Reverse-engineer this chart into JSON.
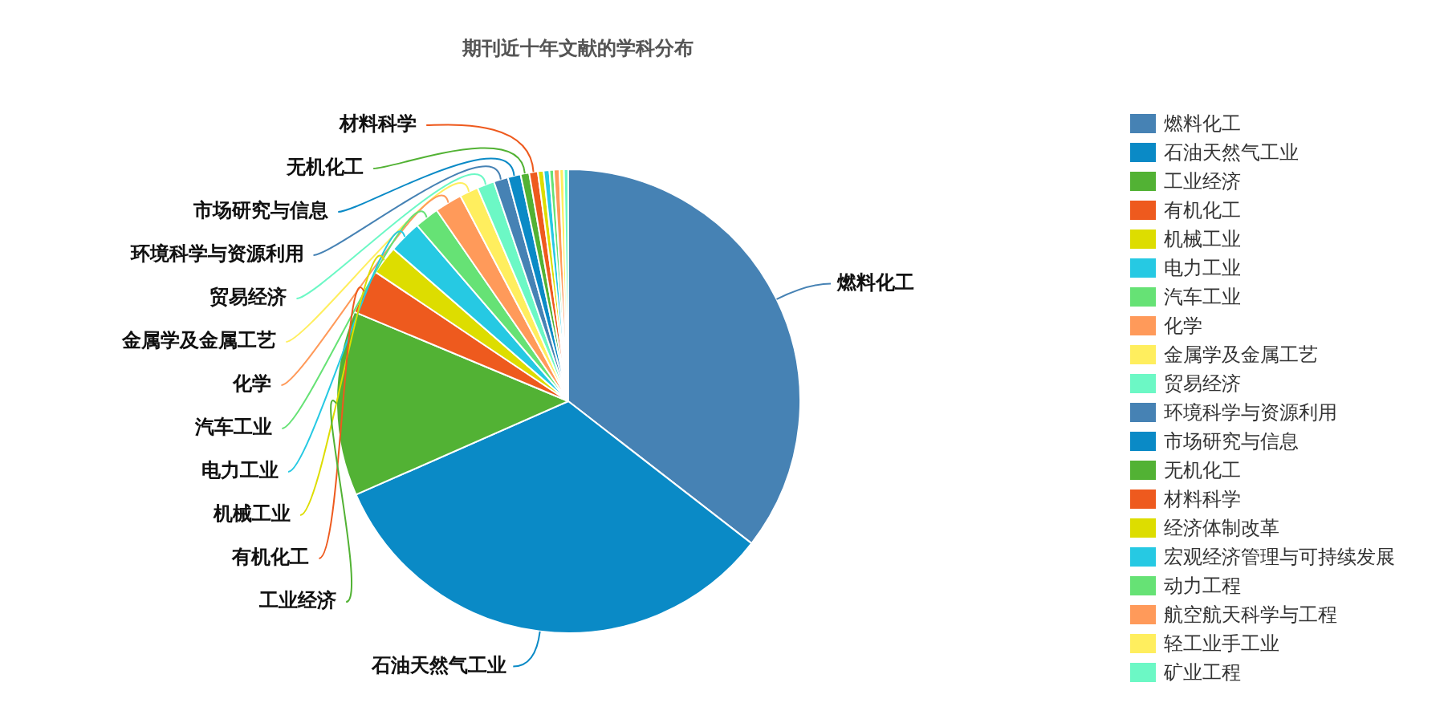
{
  "chart_data": {
    "type": "pie",
    "title": "期刊近十年文献的学科分布",
    "categories": [
      "燃料化工",
      "石油天然气工业",
      "工业经济",
      "有机化工",
      "机械工业",
      "电力工业",
      "汽车工业",
      "化学",
      "金属学及金属工艺",
      "贸易经济",
      "环境科学与资源利用",
      "市场研究与信息",
      "无机化工",
      "材料科学",
      "经济体制改革",
      "宏观经济管理与可持续发展",
      "动力工程",
      "航空航天科学与工程",
      "轻工业手工业",
      "矿业工程"
    ],
    "values": [
      35.5,
      32.9,
      12.9,
      3.1,
      2.0,
      2.3,
      1.7,
      1.9,
      1.3,
      1.2,
      1.0,
      0.9,
      0.6,
      0.6,
      0.4,
      0.4,
      0.3,
      0.4,
      0.3,
      0.3
    ],
    "colors": [
      "#4682b4",
      "#0a8ac6",
      "#52b234",
      "#ee5a1e",
      "#dddd00",
      "#26c9e3",
      "#66e275",
      "#ff9a5a",
      "#ffee5e",
      "#6cf8c5",
      "#4682b4",
      "#0a8ac6",
      "#52b234",
      "#ee5a1e",
      "#dddd00",
      "#26c9e3",
      "#66e275",
      "#ff9a5a",
      "#ffee5e",
      "#6cf8c5"
    ],
    "legend": "right"
  }
}
